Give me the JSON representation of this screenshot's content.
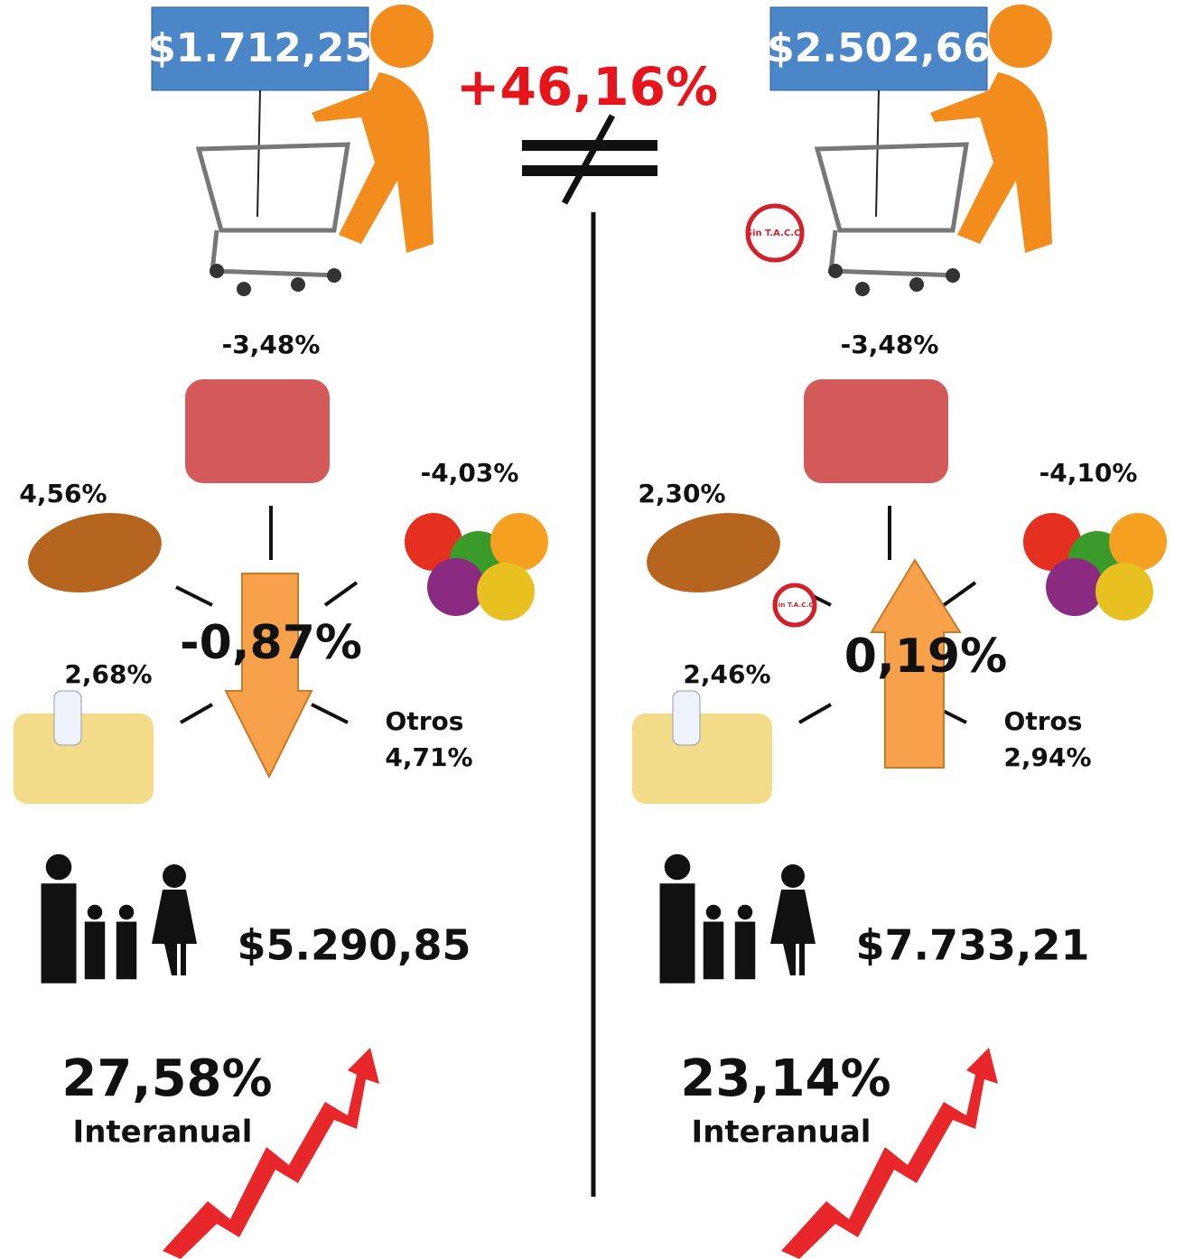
{
  "comparison": {
    "difference": "+46,16%"
  },
  "panels": [
    {
      "basket_price": "$1.712,25",
      "total_change": "-0,87%",
      "meat": "-3,48%",
      "bread": "4,56%",
      "vegetables": "-4,03%",
      "dairy": "2,68%",
      "others_label": "Otros",
      "others": "4,71%",
      "family_cost": "$5.290,85",
      "yearly_change": "27,58%",
      "yearly_label": "Interanual"
    },
    {
      "basket_price": "$2.502,66",
      "total_change": "0,19%",
      "badge": "Sin T.A.C.C.",
      "meat": "-3,48%",
      "bread": "2,30%",
      "vegetables": "-4,10%",
      "dairy": "2,46%",
      "others_label": "Otros",
      "others": "2,94%",
      "family_cost": "$7.733,21",
      "yearly_change": "23,14%",
      "yearly_label": "Interanual"
    }
  ]
}
